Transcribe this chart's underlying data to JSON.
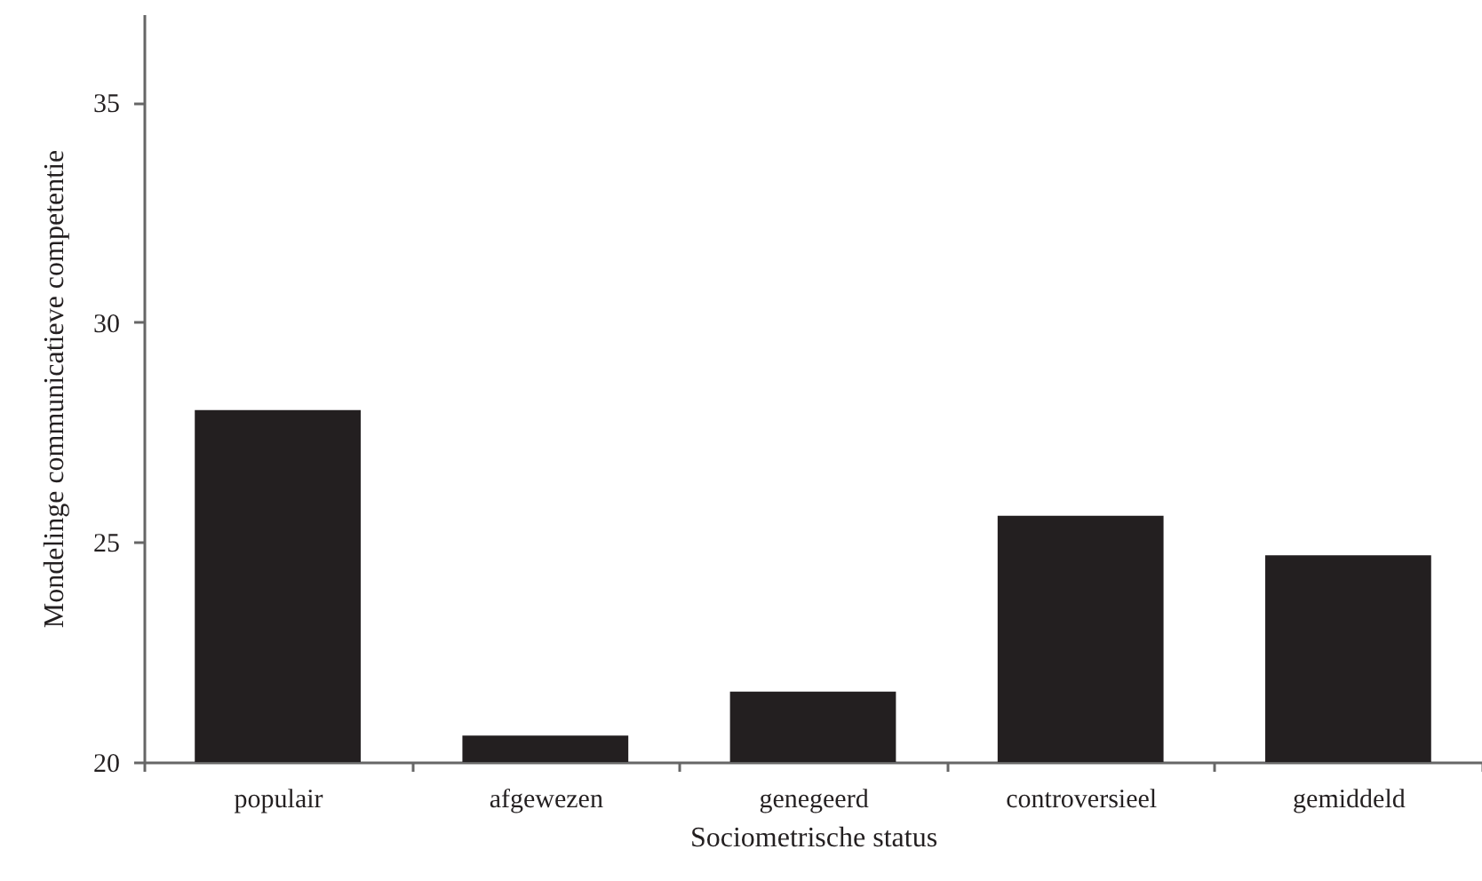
{
  "chart_data": {
    "type": "bar",
    "xlabel": "Sociometrische status",
    "ylabel": "Mondelinge communicatieve competentie",
    "categories": [
      "populair",
      "afgewezen",
      "genegeerd",
      "controversieel",
      "gemiddeld"
    ],
    "values": [
      28.0,
      20.6,
      21.6,
      25.6,
      24.7
    ],
    "color": "#231f20",
    "ylim": [
      20,
      37
    ],
    "yticks": [
      20,
      25,
      30,
      35
    ],
    "grid": false
  }
}
